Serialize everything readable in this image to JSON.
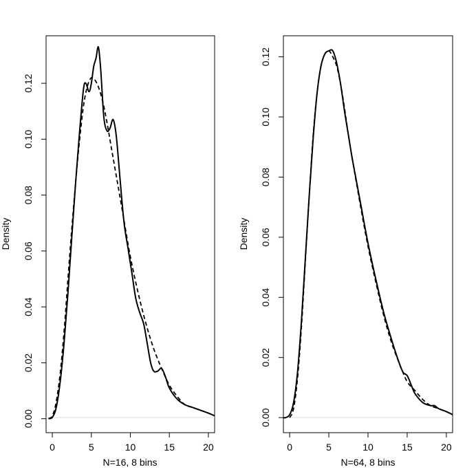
{
  "chart_data": [
    {
      "type": "line",
      "ylabel": "Density",
      "xlabel": "N=16, 8 bins",
      "xlim": [
        -0.8,
        20.8
      ],
      "ylim": [
        -0.005,
        0.137
      ],
      "xticks": [
        0,
        5,
        10,
        15,
        20
      ],
      "yticks": [
        0.0,
        0.02,
        0.04,
        0.06,
        0.08,
        0.1,
        0.12
      ],
      "ytick_labels": [
        "0.00",
        "0.02",
        "0.04",
        "0.06",
        "0.08",
        "0.10",
        "0.12"
      ],
      "grid": false,
      "series": [
        {
          "style": "solid",
          "x": [
            -0.5,
            0,
            0.5,
            1,
            1.5,
            2,
            2.5,
            3,
            3.5,
            4,
            4.3,
            4.7,
            5,
            5.3,
            5.6,
            5.9,
            6.2,
            6.6,
            7,
            7.4,
            7.8,
            8.2,
            8.7,
            9.2,
            9.7,
            10.2,
            10.7,
            11.2,
            11.7,
            12.1,
            12.6,
            13,
            13.5,
            14,
            14.5,
            15,
            16,
            17,
            18,
            19,
            20,
            20.8
          ],
          "y": [
            0,
            0.0005,
            0.004,
            0.013,
            0.027,
            0.045,
            0.065,
            0.085,
            0.103,
            0.118,
            0.12,
            0.117,
            0.12,
            0.126,
            0.129,
            0.133,
            0.125,
            0.108,
            0.103,
            0.104,
            0.107,
            0.101,
            0.085,
            0.07,
            0.061,
            0.052,
            0.043,
            0.038,
            0.034,
            0.028,
            0.02,
            0.017,
            0.017,
            0.018,
            0.015,
            0.011,
            0.007,
            0.005,
            0.004,
            0.003,
            0.002,
            0.001
          ]
        },
        {
          "style": "dashed",
          "x": [
            -0.5,
            0,
            0.5,
            1,
            1.5,
            2,
            2.5,
            3,
            3.5,
            4,
            4.5,
            5,
            5.5,
            6,
            6.5,
            7,
            7.5,
            8,
            9,
            10,
            11,
            12,
            13,
            14,
            15,
            16,
            17,
            18,
            19,
            20,
            20.8
          ],
          "y": [
            0,
            0.001,
            0.006,
            0.016,
            0.031,
            0.05,
            0.068,
            0.085,
            0.1,
            0.112,
            0.119,
            0.122,
            0.121,
            0.118,
            0.113,
            0.106,
            0.098,
            0.09,
            0.074,
            0.058,
            0.045,
            0.034,
            0.025,
            0.018,
            0.012,
            0.008,
            0.005,
            0.004,
            0.003,
            0.002,
            0.001
          ]
        }
      ]
    },
    {
      "type": "line",
      "ylabel": "Density",
      "xlabel": "N=64, 8 bins",
      "xlim": [
        -0.8,
        20.8
      ],
      "ylim": [
        -0.005,
        0.127
      ],
      "xticks": [
        0,
        5,
        10,
        15,
        20
      ],
      "yticks": [
        0.0,
        0.02,
        0.04,
        0.06,
        0.08,
        0.1,
        0.12
      ],
      "ytick_labels": [
        "0.00",
        "0.02",
        "0.04",
        "0.06",
        "0.08",
        "0.10",
        "0.12"
      ],
      "grid": false,
      "series": [
        {
          "style": "solid",
          "x": [
            -0.8,
            -0.5,
            0,
            0.5,
            1,
            1.5,
            2,
            2.5,
            3,
            3.5,
            4,
            4.5,
            5,
            5.5,
            6,
            6.5,
            7,
            7.5,
            8,
            9,
            10,
            11,
            12,
            13,
            14,
            14.5,
            15,
            15.5,
            16,
            17,
            18,
            18.5,
            19,
            20,
            20.8
          ],
          "y": [
            0,
            0,
            0.001,
            0.005,
            0.015,
            0.032,
            0.053,
            0.074,
            0.093,
            0.108,
            0.117,
            0.121,
            0.122,
            0.122,
            0.118,
            0.111,
            0.102,
            0.094,
            0.086,
            0.072,
            0.058,
            0.046,
            0.035,
            0.026,
            0.018,
            0.015,
            0.014,
            0.011,
            0.008,
            0.005,
            0.004,
            0.004,
            0.003,
            0.002,
            0.001
          ]
        },
        {
          "style": "dashed",
          "x": [
            0,
            0.5,
            1,
            1.5,
            2,
            2.5,
            3,
            3.5,
            4,
            4.5,
            5,
            5.5,
            6,
            6.5,
            7,
            7.5,
            8,
            9,
            10,
            11,
            12,
            13,
            14,
            15,
            16,
            17,
            18,
            19,
            20,
            20.8
          ],
          "y": [
            0,
            0.003,
            0.013,
            0.03,
            0.052,
            0.074,
            0.094,
            0.108,
            0.117,
            0.121,
            0.122,
            0.12,
            0.117,
            0.111,
            0.103,
            0.094,
            0.086,
            0.071,
            0.057,
            0.045,
            0.034,
            0.025,
            0.018,
            0.012,
            0.009,
            0.006,
            0.004,
            0.003,
            0.002,
            0.001
          ]
        }
      ]
    }
  ]
}
